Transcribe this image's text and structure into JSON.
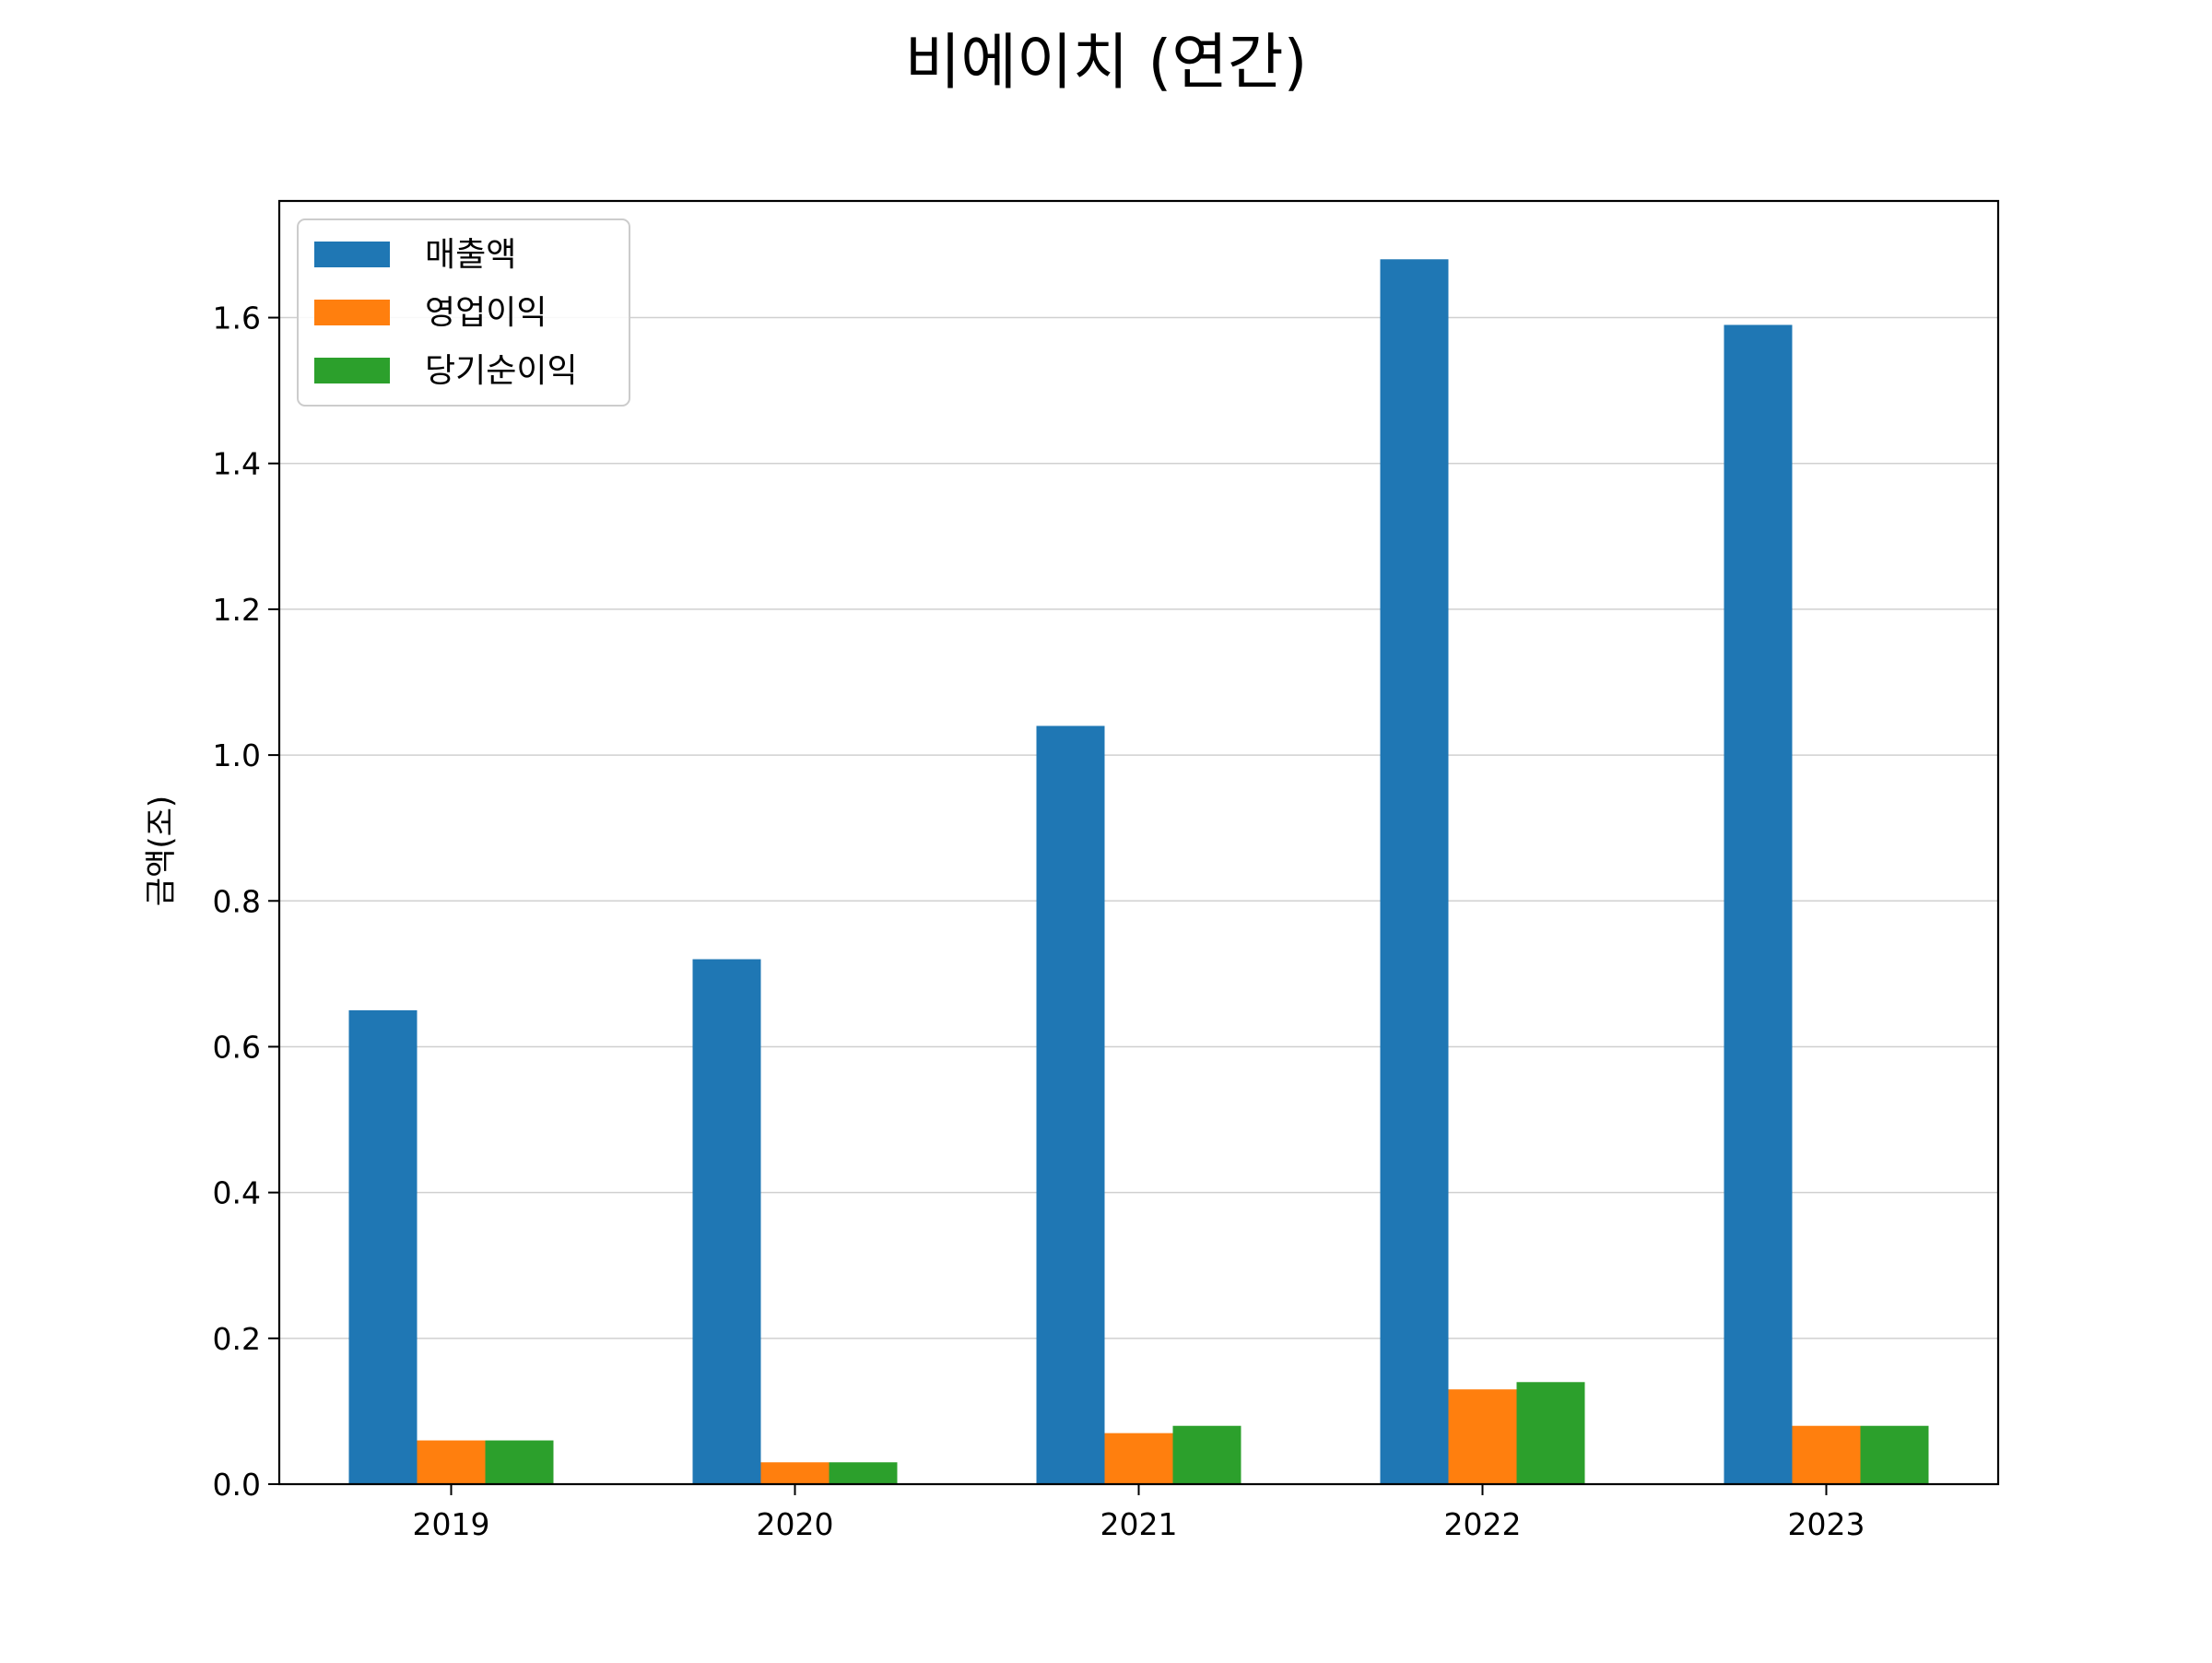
{
  "chart_data": {
    "type": "bar",
    "title": "비에이치 (연간)",
    "xlabel": "",
    "ylabel": "금액(조)",
    "categories": [
      "2019",
      "2020",
      "2021",
      "2022",
      "2023"
    ],
    "series": [
      {
        "name": "매출액",
        "color": "#1f77b4",
        "values": [
          0.65,
          0.72,
          1.04,
          1.68,
          1.59
        ]
      },
      {
        "name": "영업이익",
        "color": "#ff7f0e",
        "values": [
          0.06,
          0.03,
          0.07,
          0.13,
          0.08
        ]
      },
      {
        "name": "당기순이익",
        "color": "#2ca02c",
        "values": [
          0.06,
          0.03,
          0.08,
          0.14,
          0.08
        ]
      }
    ],
    "ylim": [
      0,
      1.76
    ],
    "yticks": [
      0.0,
      0.2,
      0.4,
      0.6,
      0.8,
      1.0,
      1.2,
      1.4,
      1.6
    ],
    "ytick_labels": [
      "0.0",
      "0.2",
      "0.4",
      "0.6",
      "0.8",
      "1.0",
      "1.2",
      "1.4",
      "1.6"
    ],
    "grid": "horizontal",
    "legend_position": "upper-left"
  }
}
